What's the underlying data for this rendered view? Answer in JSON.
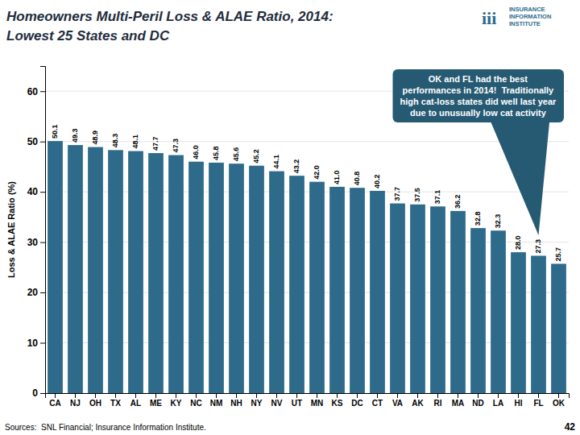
{
  "chart_data": {
    "type": "bar",
    "title": "Homeowners Multi-Peril Loss & ALAE Ratio, 2014:",
    "subtitle": "Lowest 25 States and DC",
    "y_label": "Loss & ALAE Ratio (%)",
    "categories": [
      "CA",
      "NJ",
      "OH",
      "TX",
      "AL",
      "ME",
      "KY",
      "NC",
      "NM",
      "NH",
      "NY",
      "NV",
      "UT",
      "MN",
      "KS",
      "DC",
      "CT",
      "VA",
      "AK",
      "RI",
      "MA",
      "ND",
      "LA",
      "HI",
      "FL",
      "OK"
    ],
    "values": [
      50.1,
      49.3,
      48.9,
      48.3,
      48.1,
      47.7,
      47.3,
      46.0,
      45.8,
      45.6,
      45.2,
      44.1,
      43.2,
      42.0,
      41.0,
      40.8,
      40.2,
      37.7,
      37.5,
      37.1,
      36.2,
      32.8,
      32.3,
      28.0,
      27.3,
      25.7
    ],
    "value_labels": [
      "50.1",
      "49.3",
      "48.9",
      "48.3",
      "48.1",
      "47.7",
      "47.3",
      "46.0",
      "45.8",
      "45.6",
      "45.2",
      "44.1",
      "43.2",
      "42.0",
      "41.0",
      "40.8",
      "40.2",
      "37.7",
      "37.5",
      "37.1",
      "36.2",
      "32.8",
      "32.3",
      "28.0",
      "27.3",
      "25.7"
    ],
    "data_labels": true,
    "color": "#2e6b8a",
    "ylim": [
      0,
      65
    ],
    "yticks": [
      0,
      10,
      20,
      30,
      40,
      50,
      60
    ],
    "grid": true,
    "annotations": [
      "OK and FL had the best\nperformances in 2014!  Traditionally\nhigh cat-loss states did well last year\ndue to unusually low cat activity",
      "iii",
      "INSURANCE\nINFORMATION\nINSTITUTE",
      "Sources:  SNL Financial; Insurance Information Institute.",
      "42"
    ]
  }
}
